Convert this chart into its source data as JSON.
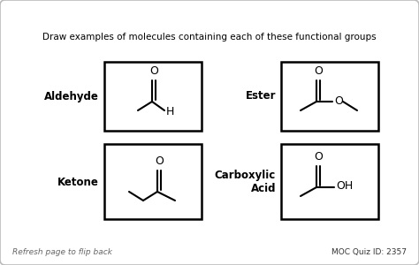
{
  "title": "Draw examples of molecules containing each of these functional groups",
  "background_color": "#ffffff",
  "text_color": "#000000",
  "footer_left": "Refresh page to flip back",
  "footer_right": "MOC Quiz ID: 2357",
  "labels": {
    "aldehyde": "Aldehyde",
    "ester": "Ester",
    "ketone": "Ketone",
    "carboxylic": "Carboxylic\nAcid"
  },
  "figsize": [
    4.74,
    3.0
  ],
  "dpi": 100
}
